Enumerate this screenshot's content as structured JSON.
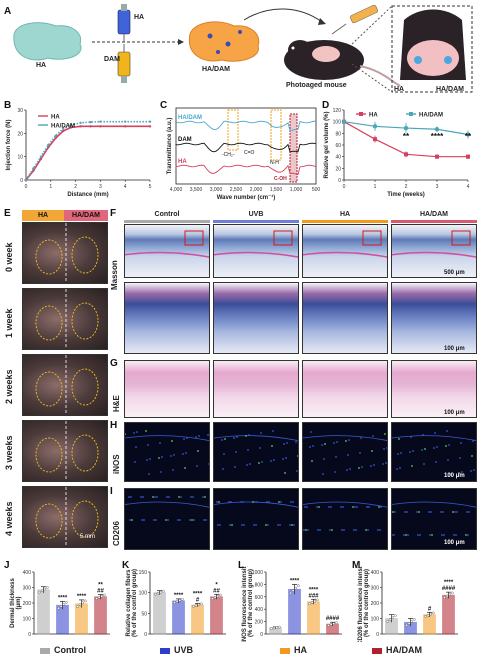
{
  "panels": {
    "A": "A",
    "B": "B",
    "C": "C",
    "D": "D",
    "E": "E",
    "F": "F",
    "G": "G",
    "H": "H",
    "I": "I",
    "J": "J",
    "K": "K",
    "L": "L",
    "M": "M"
  },
  "panelA": {
    "ha_left": "HA",
    "ha_syringe": "HA",
    "dam_syringe": "DAM",
    "ha_dam": "HA/DAM",
    "photoaged": "Photoaged mouse",
    "inset_ha": "HA",
    "inset_ha_dam": "HA/DAM"
  },
  "colors": {
    "control": "#a9a9a9",
    "uvb": "#2f3ec9",
    "ha": "#f29a1f",
    "ha_dam": "#b0202e",
    "ha_line": "#d6405e",
    "ha_dam_line": "#4aa7b7"
  },
  "panelE": {
    "col_ha": "HA",
    "col_ha_dam": "HA/DAM",
    "rows": [
      "0 week",
      "1 week",
      "2 weeks",
      "3 weeks",
      "4 weeks"
    ],
    "scale": "5 mm"
  },
  "panelF": {
    "cols": [
      "Control",
      "UVB",
      "HA",
      "HA/DAM"
    ],
    "row": "Masson",
    "scale1": "500 μm",
    "scale2": "100 μm"
  },
  "panelG": {
    "row": "H&E",
    "scale": "100 μm"
  },
  "panelH": {
    "row": "iNOS",
    "scale": "100 μm"
  },
  "panelI": {
    "row": "CD206",
    "scale": "100 μm"
  },
  "legend": [
    "Control",
    "UVB",
    "HA",
    "HA/DAM"
  ],
  "chart_data": [
    {
      "id": "B",
      "type": "line",
      "xlabel": "Distance (mm)",
      "ylabel": "Injection force (N)",
      "xlim": [
        0,
        5
      ],
      "ylim": [
        0,
        30
      ],
      "xticks": [
        0,
        1,
        2,
        3,
        4,
        5
      ],
      "yticks": [
        0,
        10,
        20,
        30
      ],
      "legend_position": "top-left",
      "series": [
        {
          "name": "HA",
          "x": [
            0,
            0.3,
            0.6,
            0.9,
            1.2,
            1.5,
            1.8,
            2.2,
            2.6,
            3,
            4,
            5
          ],
          "y": [
            0,
            4,
            9,
            14,
            18,
            21,
            22.5,
            23,
            23,
            23,
            23,
            23
          ]
        },
        {
          "name": "HA/DAM",
          "x": [
            0,
            0.3,
            0.6,
            0.9,
            1.2,
            1.5,
            1.8,
            2.2,
            2.6,
            3,
            4,
            5
          ],
          "y": [
            0,
            5,
            10,
            15,
            19,
            22,
            23.5,
            24.5,
            24.8,
            25,
            25,
            25
          ]
        }
      ]
    },
    {
      "id": "C",
      "type": "line",
      "xlabel": "Wave number (cm⁻¹)",
      "ylabel": "Transmittance (a.u.)",
      "xticks": [
        "4,000",
        "3,500",
        "3,000",
        "2,500",
        "2,000",
        "1,500",
        "1,000",
        "500"
      ],
      "series": [
        {
          "name": "HA/DAM"
        },
        {
          "name": "DAM"
        },
        {
          "name": "HA"
        }
      ],
      "annotations": [
        "-CH₂-",
        "C=O",
        "N-H",
        "C-OH"
      ]
    },
    {
      "id": "D",
      "type": "line",
      "xlabel": "Time (weeks)",
      "ylabel": "Relative gel volume (%)",
      "xlim": [
        0,
        4
      ],
      "ylim": [
        0,
        120
      ],
      "xticks": [
        0,
        1,
        2,
        3,
        4
      ],
      "yticks": [
        0,
        20,
        40,
        60,
        80,
        100,
        120
      ],
      "legend_position": "top",
      "series": [
        {
          "name": "HA",
          "x": [
            0,
            1,
            2,
            3,
            4
          ],
          "y": [
            100,
            70,
            44,
            40,
            40
          ],
          "err": [
            3,
            6,
            5,
            4,
            4
          ]
        },
        {
          "name": "HA/DAM",
          "x": [
            0,
            1,
            2,
            3,
            4
          ],
          "y": [
            100,
            92,
            89,
            87,
            78
          ],
          "err": [
            4,
            8,
            9,
            5,
            7
          ]
        }
      ],
      "annotations": [
        {
          "x": 2,
          "text": "**"
        },
        {
          "x": 3,
          "text": "****"
        },
        {
          "x": 4,
          "text": "**"
        }
      ]
    },
    {
      "id": "J",
      "type": "bar",
      "ylabel": "Dermal thickness (μm)",
      "categories": [
        "Control",
        "UVB",
        "HA",
        "HA/DAM"
      ],
      "values": [
        285,
        185,
        195,
        240
      ],
      "err": [
        20,
        25,
        25,
        15
      ],
      "ylim": [
        0,
        400
      ],
      "yticks": [
        0,
        100,
        200,
        300,
        400
      ],
      "sig": [
        "",
        "****",
        "****",
        "**\n##"
      ]
    },
    {
      "id": "K",
      "type": "bar",
      "ylabel": "Relative collagen fibers (% of the control group)",
      "categories": [
        "Control",
        "UVB",
        "HA",
        "HA/DAM"
      ],
      "values": [
        100,
        80,
        70,
        90
      ],
      "err": [
        5,
        5,
        4,
        6
      ],
      "ylim": [
        0,
        150
      ],
      "yticks": [
        0,
        50,
        100,
        150
      ],
      "sig": [
        "",
        "****",
        "****\n#",
        "*\n##"
      ]
    },
    {
      "id": "L",
      "type": "bar",
      "ylabel": "iNOS fluorescence intensity (% of the control group)",
      "categories": [
        "Control",
        "UVB",
        "HA",
        "HA/DAM"
      ],
      "values": [
        100,
        720,
        520,
        160
      ],
      "err": [
        15,
        80,
        40,
        30
      ],
      "ylim": [
        0,
        1000
      ],
      "yticks": [
        0,
        200,
        400,
        600,
        800,
        1000
      ],
      "sig": [
        "",
        "****",
        "****\n###",
        "####"
      ]
    },
    {
      "id": "M",
      "type": "bar",
      "ylabel": "CD206 fluorescence intensity (% of the control group)",
      "categories": [
        "Control",
        "UVB",
        "HA",
        "HA/DAM"
      ],
      "values": [
        100,
        75,
        125,
        250
      ],
      "err": [
        25,
        25,
        15,
        20
      ],
      "ylim": [
        0,
        400
      ],
      "yticks": [
        0,
        100,
        200,
        300,
        400
      ],
      "sig": [
        "",
        "",
        "#",
        "****\n####"
      ]
    }
  ]
}
